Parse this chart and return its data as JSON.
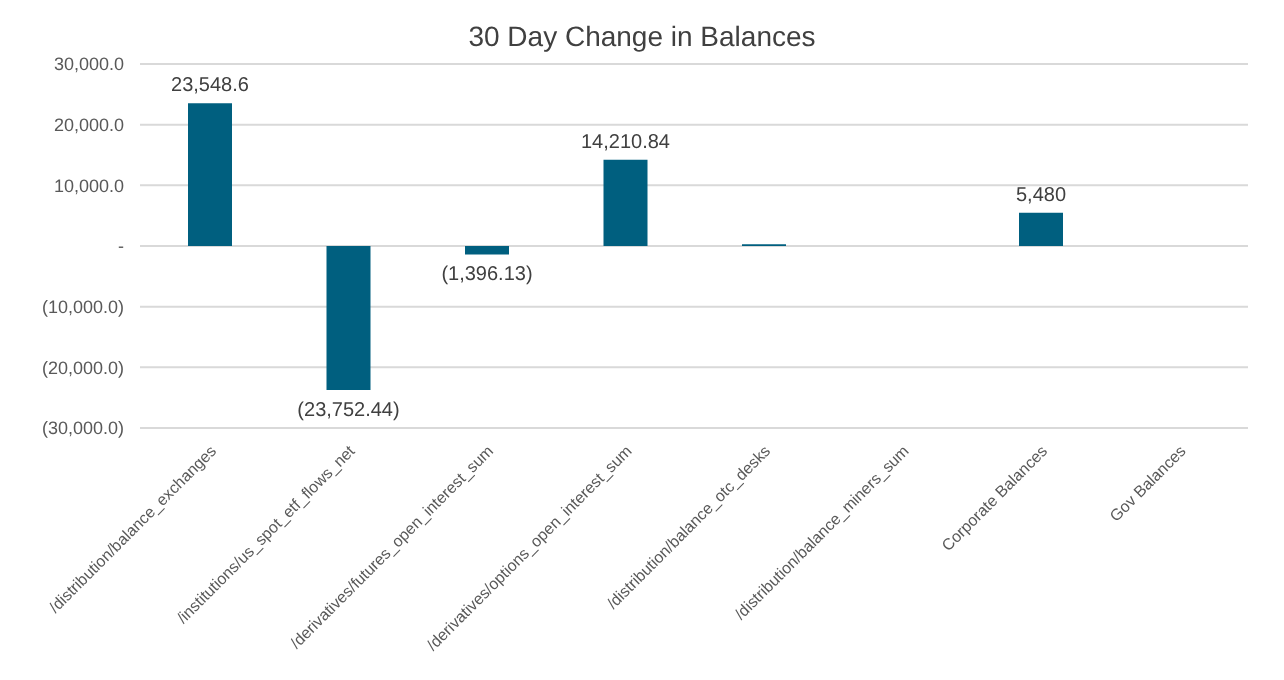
{
  "chart_data": {
    "type": "bar",
    "title": "30 Day Change in Balances",
    "categories": [
      "/distribution/balance_exchanges",
      "/institutions/us_spot_etf_flows_net",
      "/derivatives/futures_open_interest_sum",
      "/derivatives/options_open_interest_sum",
      "/distribution/balance_otc_desks",
      "/distribution/balance_miners_sum",
      "Corporate Balances",
      "Gov Balances"
    ],
    "values": [
      23548.6,
      -23752.44,
      -1396.13,
      14210.84,
      300,
      0,
      5480,
      0
    ],
    "value_labels": [
      "23,548.6",
      "(23,752.44)",
      "(1,396.13)",
      "14,210.84",
      null,
      null,
      "5,480",
      null
    ],
    "color": "#005f7f",
    "ylim": [
      -30000,
      30000
    ],
    "yticks": [
      {
        "value": -30000,
        "label": "(30,000.0)"
      },
      {
        "value": -20000,
        "label": "(20,000.0)"
      },
      {
        "value": -10000,
        "label": "(10,000.0)"
      },
      {
        "value": 0,
        "label": "-"
      },
      {
        "value": 10000,
        "label": "10,000.0"
      },
      {
        "value": 20000,
        "label": "20,000.0"
      },
      {
        "value": 30000,
        "label": "30,000.0"
      }
    ],
    "grid": "y",
    "legend": false
  }
}
